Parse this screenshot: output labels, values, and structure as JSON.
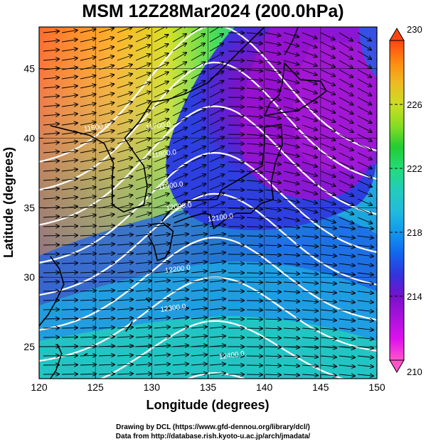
{
  "title": "MSM 12Z28Mar2024 (200.0hPa)",
  "map": {
    "xlabel": "Longitude (degrees)",
    "ylabel": "Latitude  (degrees)",
    "xlim": [
      120,
      150
    ],
    "ylim": [
      22.7,
      48
    ],
    "xticks": [
      120,
      125,
      130,
      135,
      140,
      145,
      150
    ],
    "yticks": [
      25,
      30,
      35,
      40,
      45
    ],
    "contour_field": "geopotential height",
    "contours": [
      {
        "label": "11700.0",
        "at": [
          129.5,
          40.6
        ]
      },
      {
        "label": "11800.0",
        "at": [
          130.0,
          38.6
        ]
      },
      {
        "label": "11900.0",
        "at": [
          130.6,
          36.3
        ]
      },
      {
        "label": "12000.0",
        "at": [
          131.3,
          34.8
        ]
      },
      {
        "label": "12100.0",
        "at": [
          135.0,
          34.0
        ]
      },
      {
        "label": "12200.0",
        "at": [
          131.2,
          30.3
        ]
      },
      {
        "label": "12300.0",
        "at": [
          130.8,
          27.5
        ]
      },
      {
        "label": "12400.0",
        "at": [
          136.0,
          24.1
        ]
      }
    ],
    "extra_contour_label": {
      "label": "11600.0",
      "at": [
        124.0,
        40.5
      ]
    }
  },
  "colorbar": {
    "min": 210,
    "max": 230,
    "tick_labels": [
      "230",
      "226",
      "222",
      "218",
      "214",
      "210"
    ],
    "colors": [
      "#ff55cc",
      "#dd11ee",
      "#aa11dd",
      "#7711cc",
      "#3333dd",
      "#1166ee",
      "#1199ee",
      "#22bbdd",
      "#22ccbb",
      "#22dd77",
      "#22cc33",
      "#88dd22",
      "#ccdd22",
      "#eebb22",
      "#ff8811",
      "#ff4411"
    ]
  },
  "credits": [
    "Drawing by DCL (https://www.gfd-dennou.org/library/dcl/)",
    "Data from http://database.rish.kyoto-u.ac.jp/arch/jmadata/"
  ]
}
